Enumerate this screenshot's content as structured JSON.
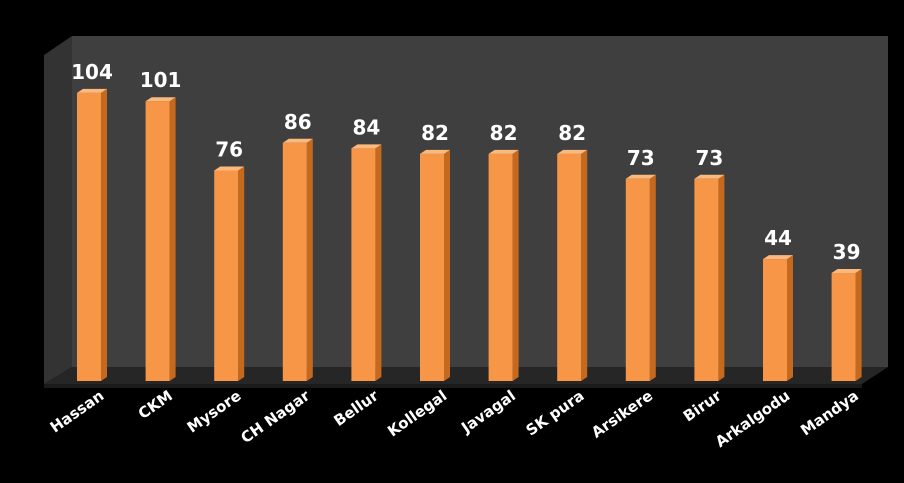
{
  "chart_data": {
    "type": "bar",
    "categories": [
      "Hassan",
      "CKM",
      "Mysore",
      "CH Nagar",
      "Bellur",
      "Kollegal",
      "Javagal",
      "SK pura",
      "Arsikere",
      "Birur",
      "Arkalgodu",
      "Mandya"
    ],
    "values": [
      104,
      101,
      76,
      86,
      84,
      82,
      82,
      82,
      73,
      73,
      44,
      39
    ],
    "title": "",
    "xlabel": "",
    "ylabel": "",
    "ylim": [
      0,
      115
    ],
    "grid": false,
    "legend": "none",
    "colors": {
      "background": "#000000",
      "plot_wall": "#3f3f3f",
      "floor": "#2a2a2a",
      "bar_front": "#f79646",
      "bar_side": "#c4691e",
      "bar_top": "#fbb97e",
      "labels": "#ffffff"
    }
  }
}
